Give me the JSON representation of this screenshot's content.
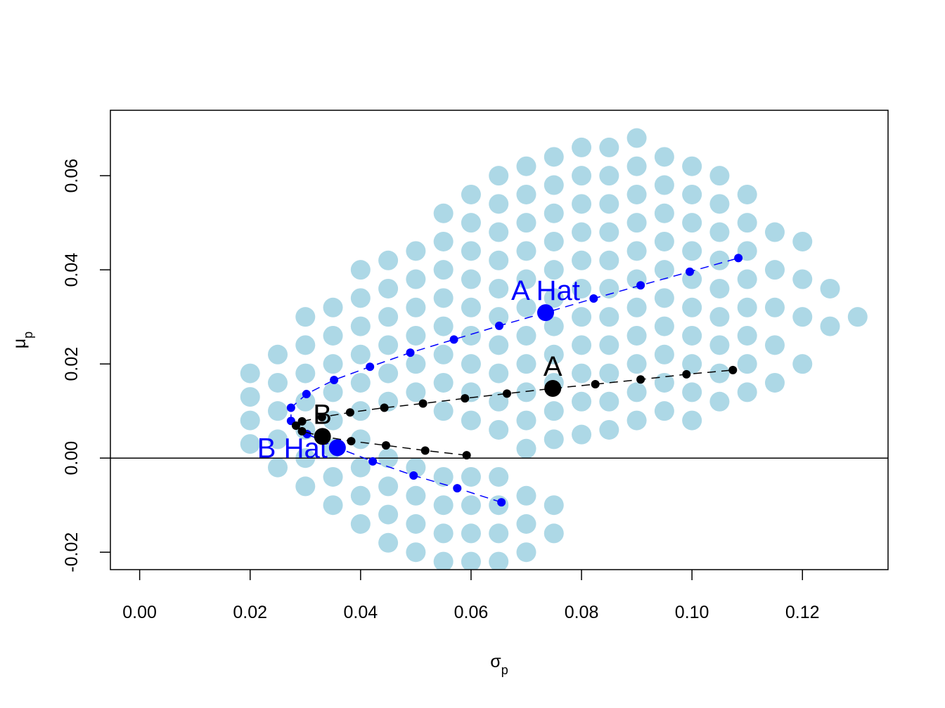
{
  "chart_data": {
    "type": "scatter",
    "xlabel": "σ",
    "xlabel_sub": "p",
    "ylabel": "μ",
    "ylabel_sub": "p",
    "xlim": [
      -0.0053,
      0.1355
    ],
    "ylim": [
      -0.0237,
      0.0739
    ],
    "xticks": [
      {
        "value": 0,
        "label": "0.00"
      },
      0.02,
      0.04,
      0.06,
      0.08,
      {
        "value": 0.1,
        "label": "0.10"
      },
      0.12
    ],
    "yticks": [
      -0.02,
      {
        "value": 0,
        "label": "0.00"
      },
      0.02,
      0.04,
      0.06
    ],
    "hline": 0,
    "series": [
      {
        "style": "points",
        "color": "#add8e6",
        "x": [
          0.02,
          0.02,
          0.02,
          0.02,
          0.025,
          0.025,
          0.025,
          0.025,
          0.025,
          0.03,
          0.03,
          0.03,
          0.03,
          0.03,
          0.03,
          0.03,
          0.035,
          0.035,
          0.035,
          0.035,
          0.035,
          0.035,
          0.035,
          0.035,
          0.04,
          0.04,
          0.04,
          0.04,
          0.04,
          0.04,
          0.04,
          0.04,
          0.04,
          0.04,
          0.045,
          0.045,
          0.045,
          0.045,
          0.045,
          0.045,
          0.045,
          0.045,
          0.045,
          0.045,
          0.05,
          0.05,
          0.05,
          0.05,
          0.05,
          0.05,
          0.05,
          0.05,
          0.05,
          0.05,
          0.055,
          0.055,
          0.055,
          0.055,
          0.055,
          0.055,
          0.055,
          0.055,
          0.055,
          0.055,
          0.055,
          0.055,
          0.06,
          0.06,
          0.06,
          0.06,
          0.06,
          0.06,
          0.06,
          0.06,
          0.06,
          0.06,
          0.06,
          0.06,
          0.06,
          0.065,
          0.065,
          0.065,
          0.065,
          0.065,
          0.065,
          0.065,
          0.065,
          0.065,
          0.065,
          0.065,
          0.065,
          0.065,
          0.065,
          0.07,
          0.07,
          0.07,
          0.07,
          0.07,
          0.07,
          0.07,
          0.07,
          0.07,
          0.07,
          0.07,
          0.07,
          0.07,
          0.07,
          0.075,
          0.075,
          0.075,
          0.075,
          0.075,
          0.075,
          0.075,
          0.075,
          0.075,
          0.075,
          0.075,
          0.075,
          0.075,
          0.08,
          0.08,
          0.08,
          0.08,
          0.08,
          0.08,
          0.08,
          0.08,
          0.08,
          0.08,
          0.08,
          0.085,
          0.085,
          0.085,
          0.085,
          0.085,
          0.085,
          0.085,
          0.085,
          0.085,
          0.085,
          0.085,
          0.09,
          0.09,
          0.09,
          0.09,
          0.09,
          0.09,
          0.09,
          0.09,
          0.09,
          0.09,
          0.09,
          0.095,
          0.095,
          0.095,
          0.095,
          0.095,
          0.095,
          0.095,
          0.095,
          0.095,
          0.095,
          0.1,
          0.1,
          0.1,
          0.1,
          0.1,
          0.1,
          0.1,
          0.1,
          0.1,
          0.1,
          0.105,
          0.105,
          0.105,
          0.105,
          0.105,
          0.105,
          0.105,
          0.105,
          0.105,
          0.11,
          0.11,
          0.11,
          0.11,
          0.11,
          0.11,
          0.11,
          0.11,
          0.115,
          0.115,
          0.115,
          0.115,
          0.115,
          0.12,
          0.12,
          0.12,
          0.12,
          0.125,
          0.125,
          0.13
        ],
        "y": [
          0.003,
          0.008,
          0.013,
          0.018,
          -0.002,
          0.004,
          0.01,
          0.016,
          0.022,
          -0.006,
          0,
          0.006,
          0.012,
          0.018,
          0.024,
          0.03,
          -0.01,
          -0.004,
          0.002,
          0.008,
          0.014,
          0.02,
          0.026,
          0.032,
          -0.014,
          -0.008,
          -0.002,
          0.004,
          0.01,
          0.016,
          0.022,
          0.028,
          0.034,
          0.04,
          -0.018,
          -0.012,
          -0.006,
          0,
          0.012,
          0.018,
          0.024,
          0.03,
          0.036,
          0.042,
          -0.02,
          -0.014,
          -0.008,
          -0.002,
          0.014,
          0.02,
          0.026,
          0.032,
          0.038,
          0.044,
          -0.022,
          -0.016,
          -0.01,
          -0.004,
          0.01,
          0.016,
          0.022,
          0.028,
          0.034,
          0.04,
          0.046,
          0.052,
          -0.022,
          -0.016,
          -0.01,
          -0.004,
          0.008,
          0.014,
          0.02,
          0.026,
          0.032,
          0.038,
          0.044,
          0.05,
          0.056,
          -0.022,
          -0.016,
          -0.01,
          -0.004,
          0.006,
          0.012,
          0.018,
          0.024,
          0.03,
          0.036,
          0.042,
          0.048,
          0.054,
          0.06,
          -0.02,
          -0.014,
          -0.008,
          0.002,
          0.008,
          0.014,
          0.02,
          0.026,
          0.032,
          0.038,
          0.044,
          0.05,
          0.056,
          0.062,
          -0.016,
          -0.01,
          0.004,
          0.01,
          0.016,
          0.022,
          0.028,
          0.034,
          0.04,
          0.046,
          0.052,
          0.058,
          0.064,
          0.005,
          0.012,
          0.018,
          0.024,
          0.03,
          0.036,
          0.042,
          0.048,
          0.054,
          0.06,
          0.066,
          0.006,
          0.012,
          0.018,
          0.024,
          0.03,
          0.036,
          0.042,
          0.048,
          0.054,
          0.06,
          0.066,
          0.008,
          0.014,
          0.02,
          0.026,
          0.032,
          0.038,
          0.044,
          0.05,
          0.056,
          0.062,
          0.068,
          0.01,
          0.016,
          0.022,
          0.028,
          0.034,
          0.04,
          0.046,
          0.052,
          0.058,
          0.064,
          0.008,
          0.014,
          0.02,
          0.026,
          0.032,
          0.038,
          0.044,
          0.05,
          0.056,
          0.062,
          0.012,
          0.018,
          0.024,
          0.03,
          0.036,
          0.042,
          0.048,
          0.054,
          0.06,
          0.014,
          0.02,
          0.026,
          0.032,
          0.038,
          0.044,
          0.05,
          0.056,
          0.016,
          0.024,
          0.032,
          0.04,
          0.048,
          0.02,
          0.03,
          0.038,
          0.046,
          0.028,
          0.036,
          0.03
        ]
      },
      {
        "style": "dashed-line-points",
        "color": "#0000ff",
        "x": [
          0.0655,
          0.0575,
          0.0496,
          0.0422,
          0.0358,
          0.0303,
          0.0274,
          0.0274,
          0.0302,
          0.0352,
          0.0417,
          0.049,
          0.0569,
          0.0651,
          0.0735,
          0.0822,
          0.0907,
          0.0996,
          0.1084
        ],
        "y": [
          -0.0094,
          -0.0064,
          -0.0037,
          -0.0007,
          0.0022,
          0.0051,
          0.0079,
          0.0107,
          0.0136,
          0.0166,
          0.0194,
          0.0224,
          0.0252,
          0.0281,
          0.0309,
          0.0339,
          0.0367,
          0.0396,
          0.0425
        ]
      },
      {
        "style": "dashed-line-points",
        "color": "#000000",
        "x": [
          0.0592,
          0.0517,
          0.0446,
          0.0383,
          0.0331,
          0.0294,
          0.0283,
          0.0294,
          0.033,
          0.0381,
          0.0443,
          0.0513,
          0.0589,
          0.0665,
          0.0748,
          0.0825,
          0.0907,
          0.099,
          0.1074
        ],
        "y": [
          0.0006,
          0.0016,
          0.0027,
          0.0036,
          0.0046,
          0.0057,
          0.0069,
          0.0078,
          0.0087,
          0.0097,
          0.0107,
          0.0116,
          0.0127,
          0.0137,
          0.0148,
          0.0157,
          0.0167,
          0.0178,
          0.0187
        ]
      }
    ],
    "highlights": [
      {
        "label": "A Hat",
        "x": 0.0735,
        "y": 0.0309,
        "color": "#0000ff",
        "label_pos": "above"
      },
      {
        "label": "B Hat",
        "x": 0.0358,
        "y": 0.0022,
        "color": "#0000ff",
        "label_pos": "left"
      },
      {
        "label": "A",
        "x": 0.0748,
        "y": 0.0148,
        "color": "#000000",
        "label_pos": "above"
      },
      {
        "label": "B",
        "x": 0.0331,
        "y": 0.0046,
        "color": "#000000",
        "label_pos": "above"
      }
    ]
  }
}
